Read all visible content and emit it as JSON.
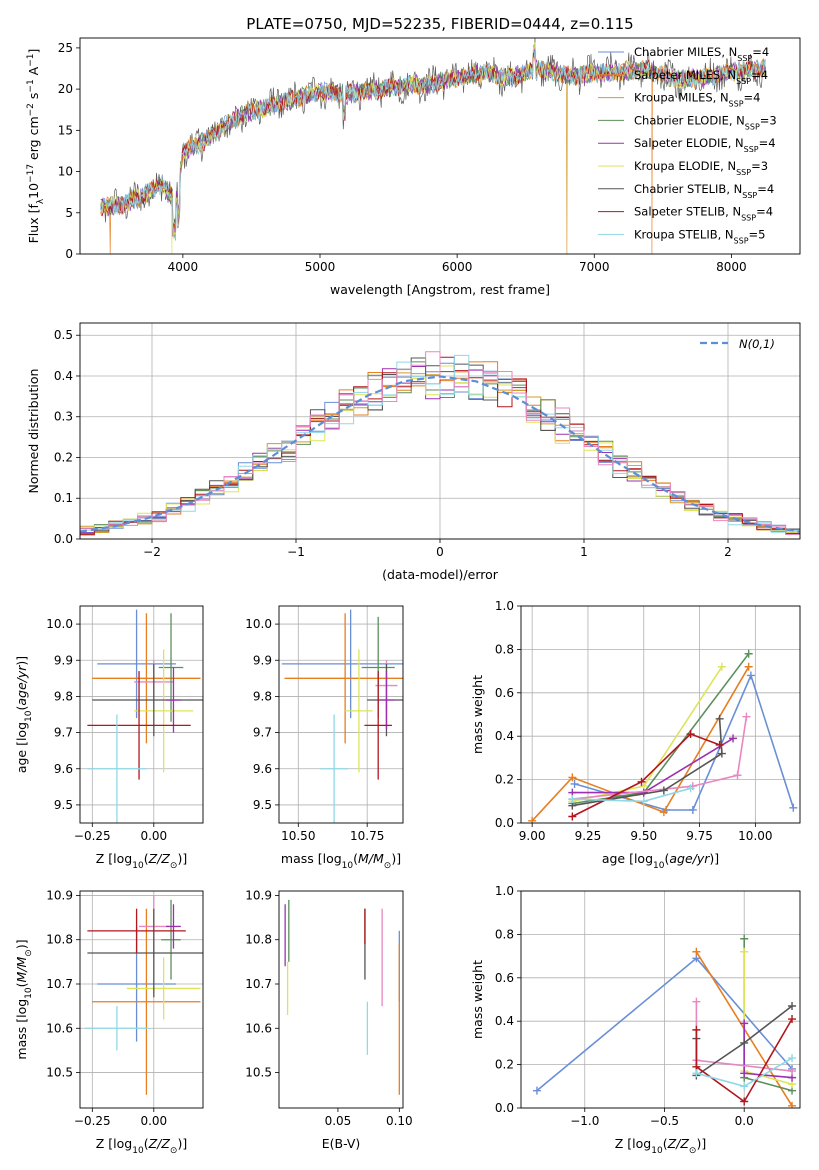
{
  "figure": {
    "title": "PLATE=0750, MJD=52235, FIBERID=0444, z=0.115"
  },
  "colors": {
    "Chabrier MILES": "#6a8fd6",
    "Salpeter MILES": "#e67e22",
    "Kroupa MILES": "#d49a2a",
    "Chabrier ELODIE": "#5b8f5b",
    "Salpeter ELODIE": "#9b30b0",
    "Kroupa ELODIE": "#dde45a",
    "Chabrier STELIB": "#555555",
    "Salpeter STELIB": "#b0171f",
    "Kroupa STELIB": "#8fd8e6",
    "extra": "#e887c0",
    "normal": "#5a8fd8"
  },
  "chart_data": [
    {
      "id": "spectrum",
      "type": "line",
      "title": "PLATE=0750, MJD=52235, FIBERID=0444, z=0.115",
      "xlabel": "wavelength [Angstrom, rest frame]",
      "ylabel": "Flux [f_λ 10^-17 erg cm^-2 s^-1 A^-1]",
      "xlim": [
        3250,
        8500
      ],
      "ylim": [
        0,
        26.2
      ],
      "xticks": [
        4000,
        5000,
        6000,
        7000,
        8000
      ],
      "yticks": [
        0,
        5,
        10,
        15,
        20,
        25
      ],
      "grid": false,
      "legend_position": "top-right",
      "x": [
        3400,
        3550,
        3700,
        3850,
        3950,
        4000,
        4150,
        4300,
        4450,
        4600,
        4800,
        5000,
        5200,
        5400,
        5600,
        5800,
        6000,
        6200,
        6400,
        6600,
        6800,
        7000,
        7200,
        7400,
        7600,
        7800,
        8000,
        8250
      ],
      "y": [
        5.7,
        5.9,
        7.0,
        8.6,
        6.2,
        12.5,
        13.6,
        15.5,
        17.0,
        17.8,
        18.7,
        19.8,
        19.4,
        19.9,
        20.4,
        20.6,
        21.4,
        21.9,
        21.4,
        22.4,
        21.6,
        21.9,
        22.2,
        22.3,
        21.1,
        21.4,
        22.1,
        22.5
      ],
      "series": [
        {
          "name": "Chabrier MILES, N_SSP=4",
          "label": "Chabrier MILES, N",
          "sub": "SSP",
          "tail": "=4"
        },
        {
          "name": "Salpeter MILES, N_SSP=4",
          "label": "Salpeter MILES, N",
          "sub": "SSP",
          "tail": "=4"
        },
        {
          "name": "Kroupa MILES, N_SSP=4",
          "label": "Kroupa MILES, N",
          "sub": "SSP",
          "tail": "=4"
        },
        {
          "name": "Chabrier ELODIE, N_SSP=3",
          "label": "Chabrier ELODIE, N",
          "sub": "SSP",
          "tail": "=3"
        },
        {
          "name": "Salpeter ELODIE, N_SSP=4",
          "label": "Salpeter ELODIE, N",
          "sub": "SSP",
          "tail": "=4"
        },
        {
          "name": "Kroupa ELODIE, N_SSP=3",
          "label": "Kroupa ELODIE, N",
          "sub": "SSP",
          "tail": "=3"
        },
        {
          "name": "Chabrier STELIB, N_SSP=4",
          "label": "Chabrier STELIB, N",
          "sub": "SSP",
          "tail": "=4"
        },
        {
          "name": "Salpeter STELIB, N_SSP=4",
          "label": "Salpeter STELIB, N",
          "sub": "SSP",
          "tail": "=4"
        },
        {
          "name": "Kroupa STELIB, N_SSP=5",
          "label": "Kroupa STELIB, N",
          "sub": "SSP",
          "tail": "=5"
        }
      ],
      "drops": [
        {
          "x": 3470,
          "series": "Salpeter MILES"
        },
        {
          "x": 3920,
          "series": "Kroupa ELODIE"
        },
        {
          "x": 6800,
          "series": "Kroupa MILES"
        },
        {
          "x": 7420,
          "series": "Salpeter MILES"
        }
      ]
    },
    {
      "id": "residuals",
      "type": "line",
      "xlabel": "(data-model)/error",
      "ylabel": "Normed distribution",
      "xlim": [
        -2.5,
        2.5
      ],
      "ylim": [
        0,
        0.53
      ],
      "xticks": [
        -2,
        -1,
        0,
        1,
        2
      ],
      "yticks": [
        0.0,
        0.1,
        0.2,
        0.3,
        0.4,
        0.5
      ],
      "grid": true,
      "legend_position": "top-right",
      "normal_label": "N(0,1)",
      "bin_width": 0.1,
      "bins_x": [
        -2.5,
        -2.4,
        -2.3,
        -2.2,
        -2.1,
        -2.0,
        -1.9,
        -1.8,
        -1.7,
        -1.6,
        -1.5,
        -1.4,
        -1.3,
        -1.2,
        -1.1,
        -1.0,
        -0.9,
        -0.8,
        -0.7,
        -0.6,
        -0.5,
        -0.4,
        -0.3,
        -0.2,
        -0.1,
        0.0,
        0.1,
        0.2,
        0.3,
        0.4,
        0.5,
        0.6,
        0.7,
        0.8,
        0.9,
        1.0,
        1.1,
        1.2,
        1.3,
        1.4,
        1.5,
        1.6,
        1.7,
        1.8,
        1.9,
        2.0,
        2.1,
        2.2,
        2.3,
        2.4
      ],
      "normal_x": [
        -2.5,
        -2.25,
        -2.0,
        -1.75,
        -1.5,
        -1.25,
        -1.0,
        -0.75,
        -0.5,
        -0.25,
        0.0,
        0.25,
        0.5,
        0.75,
        1.0,
        1.25,
        1.5,
        1.75,
        2.0,
        2.25,
        2.5
      ],
      "normal_y": [
        0.018,
        0.032,
        0.054,
        0.086,
        0.13,
        0.183,
        0.242,
        0.301,
        0.352,
        0.387,
        0.399,
        0.387,
        0.352,
        0.301,
        0.242,
        0.183,
        0.13,
        0.086,
        0.054,
        0.032,
        0.018
      ]
    },
    {
      "id": "age_vs_Z",
      "type": "scatter",
      "xlabel": "Z [log10(Z/Z⊙)]",
      "ylabel": "age [log10(age/yr)]",
      "xlim": [
        -0.3,
        0.2
      ],
      "ylim": [
        9.45,
        10.05
      ],
      "xticks": [
        -0.25,
        0.0
      ],
      "yticks": [
        9.5,
        9.6,
        9.7,
        9.8,
        9.9,
        10.0
      ],
      "grid": true,
      "points": [
        {
          "series": "Chabrier MILES",
          "x": -0.07,
          "y": 9.89,
          "xerr": 0.16,
          "yerr": 0.15
        },
        {
          "series": "Salpeter MILES",
          "x": -0.03,
          "y": 9.85,
          "xerr": 0.22,
          "yerr": 0.18
        },
        {
          "series": "extra",
          "x": 0.0,
          "y": 9.84,
          "xerr": 0.08,
          "yerr": 0.06
        },
        {
          "series": "Chabrier ELODIE",
          "x": 0.07,
          "y": 9.88,
          "xerr": 0.05,
          "yerr": 0.15
        },
        {
          "series": "Kroupa ELODIE",
          "x": 0.04,
          "y": 9.76,
          "xerr": 0.12,
          "yerr": 0.17
        },
        {
          "series": "Chabrier STELIB",
          "x": 0.0,
          "y": 9.79,
          "xerr": 0.25,
          "yerr": 0.1
        },
        {
          "series": "Salpeter ELODIE",
          "x": 0.08,
          "y": 9.79,
          "xerr": 0.03,
          "yerr": 0.09
        },
        {
          "series": "Salpeter STELIB",
          "x": -0.06,
          "y": 9.72,
          "xerr": 0.21,
          "yerr": 0.15
        },
        {
          "series": "Kroupa STELIB",
          "x": -0.15,
          "y": 9.6,
          "xerr": 0.12,
          "yerr": 0.15
        }
      ]
    },
    {
      "id": "age_vs_mass",
      "type": "scatter",
      "xlabel": "mass [log10(M/M⊙)]",
      "ylabel": "",
      "xlim": [
        10.43,
        10.88
      ],
      "ylim": [
        9.45,
        10.05
      ],
      "xticks": [
        10.5,
        10.75
      ],
      "yticks": [
        9.5,
        9.6,
        9.7,
        9.8,
        9.9,
        10.0
      ],
      "grid": true,
      "points": [
        {
          "series": "Chabrier MILES",
          "x": 10.69,
          "y": 9.89,
          "xerr": 0.25,
          "yerr": 0.15
        },
        {
          "series": "Salpeter MILES",
          "x": 10.67,
          "y": 9.85,
          "xerr": 0.22,
          "yerr": 0.18
        },
        {
          "series": "extra",
          "x": 10.82,
          "y": 9.83,
          "xerr": 0.04,
          "yerr": 0.07
        },
        {
          "series": "Chabrier ELODIE",
          "x": 10.79,
          "y": 9.88,
          "xerr": 0.06,
          "yerr": 0.14
        },
        {
          "series": "Kroupa ELODIE",
          "x": 10.72,
          "y": 9.76,
          "xerr": 0.05,
          "yerr": 0.17
        },
        {
          "series": "Chabrier STELIB",
          "x": 10.82,
          "y": 9.79,
          "xerr": 0.07,
          "yerr": 0.1
        },
        {
          "series": "Salpeter ELODIE",
          "x": 10.82,
          "y": 9.79,
          "xerr": 0.03,
          "yerr": 0.08
        },
        {
          "series": "Salpeter STELIB",
          "x": 10.79,
          "y": 9.72,
          "xerr": 0.05,
          "yerr": 0.15
        },
        {
          "series": "Kroupa STELIB",
          "x": 10.63,
          "y": 9.6,
          "xerr": 0.05,
          "yerr": 0.15
        }
      ]
    },
    {
      "id": "weight_vs_age",
      "type": "line",
      "xlabel": "age [log10(age/yr)]",
      "ylabel": "mass weight",
      "xlim": [
        8.95,
        10.2
      ],
      "ylim": [
        0.0,
        1.0
      ],
      "xticks": [
        9.0,
        9.25,
        9.5,
        9.75,
        10.0
      ],
      "yticks": [
        0.0,
        0.2,
        0.4,
        0.6,
        0.8,
        1.0
      ],
      "grid": true,
      "series": [
        {
          "name": "Chabrier MILES",
          "x": [
            9.19,
            9.6,
            9.72,
            9.98,
            10.17
          ],
          "y": [
            0.18,
            0.06,
            0.06,
            0.68,
            0.07
          ]
        },
        {
          "name": "Salpeter MILES",
          "x": [
            9.0,
            9.18,
            9.59,
            9.97
          ],
          "y": [
            0.01,
            0.21,
            0.05,
            0.72
          ]
        },
        {
          "name": "Chabrier ELODIE",
          "x": [
            9.18,
            9.5,
            9.97
          ],
          "y": [
            0.09,
            0.14,
            0.78
          ]
        },
        {
          "name": "Kroupa ELODIE",
          "x": [
            9.18,
            9.5,
            9.85
          ],
          "y": [
            0.1,
            0.17,
            0.72
          ]
        },
        {
          "name": "Salpeter ELODIE",
          "x": [
            9.18,
            9.5,
            9.9
          ],
          "y": [
            0.14,
            0.14,
            0.39
          ]
        },
        {
          "name": "extra",
          "x": [
            9.18,
            9.72,
            9.92,
            9.96
          ],
          "y": [
            0.11,
            0.17,
            0.22,
            0.49
          ]
        },
        {
          "name": "Chabrier STELIB",
          "x": [
            9.18,
            9.59,
            9.85,
            9.84
          ],
          "y": [
            0.08,
            0.15,
            0.32,
            0.48
          ]
        },
        {
          "name": "Salpeter STELIB",
          "x": [
            9.18,
            9.49,
            9.71,
            9.84
          ],
          "y": [
            0.03,
            0.19,
            0.41,
            0.36
          ]
        },
        {
          "name": "Kroupa STELIB",
          "x": [
            9.18,
            9.5,
            9.71
          ],
          "y": [
            0.11,
            0.1,
            0.16
          ]
        }
      ]
    },
    {
      "id": "mass_vs_Z",
      "type": "scatter",
      "xlabel": "Z [log10(Z/Z⊙)]",
      "ylabel": "mass [log10(M/M⊙)]",
      "xlim": [
        -0.3,
        0.2
      ],
      "ylim": [
        10.42,
        10.91
      ],
      "xticks": [
        -0.25,
        0.0
      ],
      "yticks": [
        10.5,
        10.6,
        10.7,
        10.8,
        10.9
      ],
      "grid": true,
      "points": [
        {
          "series": "Chabrier MILES",
          "x": -0.07,
          "y": 10.7,
          "xerr": 0.16,
          "yerr": 0.13
        },
        {
          "series": "Salpeter MILES",
          "x": -0.03,
          "y": 10.66,
          "xerr": 0.22,
          "yerr": 0.21
        },
        {
          "series": "extra",
          "x": 0.0,
          "y": 10.83,
          "xerr": 0.06,
          "yerr": 0.07
        },
        {
          "series": "Chabrier ELODIE",
          "x": 0.07,
          "y": 10.8,
          "xerr": 0.04,
          "yerr": 0.09
        },
        {
          "series": "Kroupa ELODIE",
          "x": 0.04,
          "y": 10.69,
          "xerr": 0.15,
          "yerr": 0.07
        },
        {
          "series": "Chabrier STELIB",
          "x": 0.0,
          "y": 10.77,
          "xerr": 0.27,
          "yerr": 0.1
        },
        {
          "series": "Salpeter ELODIE",
          "x": 0.08,
          "y": 10.83,
          "xerr": 0.03,
          "yerr": 0.05
        },
        {
          "series": "Salpeter STELIB",
          "x": -0.07,
          "y": 10.82,
          "xerr": 0.2,
          "yerr": 0.05
        },
        {
          "series": "Kroupa STELIB",
          "x": -0.15,
          "y": 10.6,
          "xerr": 0.13,
          "yerr": 0.05
        }
      ]
    },
    {
      "id": "mass_vs_ebv",
      "type": "scatter",
      "xlabel": "E(B-V)",
      "ylabel": "",
      "xlim": [
        0.002,
        0.103
      ],
      "ylim": [
        10.42,
        10.91
      ],
      "xticks": [
        0.05,
        0.1
      ],
      "yticks": [
        10.5,
        10.6,
        10.7,
        10.8,
        10.9
      ],
      "grid": false,
      "points": [
        {
          "series": "Chabrier MILES",
          "x": 0.1,
          "y": 10.74,
          "yerr": 0.08
        },
        {
          "series": "Salpeter MILES",
          "x": 0.1,
          "y": 10.62,
          "yerr": 0.17
        },
        {
          "series": "Chabrier ELODIE",
          "x": 0.01,
          "y": 10.82,
          "yerr": 0.07
        },
        {
          "series": "Salpeter ELODIE",
          "x": 0.007,
          "y": 10.81,
          "yerr": 0.07
        },
        {
          "series": "Kroupa ELODIE",
          "x": 0.009,
          "y": 10.69,
          "yerr": 0.06
        },
        {
          "series": "Chabrier STELIB",
          "x": 0.072,
          "y": 10.79,
          "yerr": 0.08
        },
        {
          "series": "Salpeter STELIB",
          "x": 0.072,
          "y": 10.83,
          "yerr": 0.04
        },
        {
          "series": "extra",
          "x": 0.086,
          "y": 10.76,
          "yerr": 0.11
        },
        {
          "series": "Kroupa STELIB",
          "x": 0.074,
          "y": 10.6,
          "yerr": 0.06
        }
      ]
    },
    {
      "id": "weight_vs_Z",
      "type": "line",
      "xlabel": "Z [log10(Z/Z⊙)]",
      "ylabel": "mass weight",
      "xlim": [
        -1.4,
        0.35
      ],
      "ylim": [
        0.0,
        1.0
      ],
      "xticks": [
        -1.0,
        -0.5,
        0.0
      ],
      "yticks": [
        0.0,
        0.2,
        0.4,
        0.6,
        0.8,
        1.0
      ],
      "grid": true,
      "series": [
        {
          "name": "Chabrier MILES",
          "x": [
            -1.3,
            -0.3,
            0.3
          ],
          "y": [
            0.08,
            0.69,
            0.18
          ]
        },
        {
          "name": "Salpeter MILES",
          "x": [
            -0.3,
            0.3
          ],
          "y": [
            0.72,
            0.01
          ]
        },
        {
          "name": "Chabrier ELODIE",
          "x": [
            0.0,
            0.0,
            0.3
          ],
          "y": [
            0.78,
            0.14,
            0.08
          ]
        },
        {
          "name": "Kroupa ELODIE",
          "x": [
            0.0,
            0.0,
            0.3
          ],
          "y": [
            0.72,
            0.17,
            0.11
          ]
        },
        {
          "name": "Salpeter ELODIE",
          "x": [
            0.0,
            0.0,
            0.3
          ],
          "y": [
            0.39,
            0.16,
            0.14
          ]
        },
        {
          "name": "extra",
          "x": [
            -0.3,
            -0.3,
            0.3
          ],
          "y": [
            0.49,
            0.22,
            0.17
          ]
        },
        {
          "name": "Chabrier STELIB",
          "x": [
            -0.3,
            -0.3,
            0.0,
            0.3
          ],
          "y": [
            0.32,
            0.15,
            0.3,
            0.47
          ]
        },
        {
          "name": "Salpeter STELIB",
          "x": [
            -0.3,
            -0.3,
            0.0,
            0.3
          ],
          "y": [
            0.36,
            0.19,
            0.03,
            0.41
          ]
        },
        {
          "name": "Kroupa STELIB",
          "x": [
            -0.3,
            0.0,
            0.3
          ],
          "y": [
            0.16,
            0.1,
            0.23
          ]
        }
      ]
    }
  ]
}
